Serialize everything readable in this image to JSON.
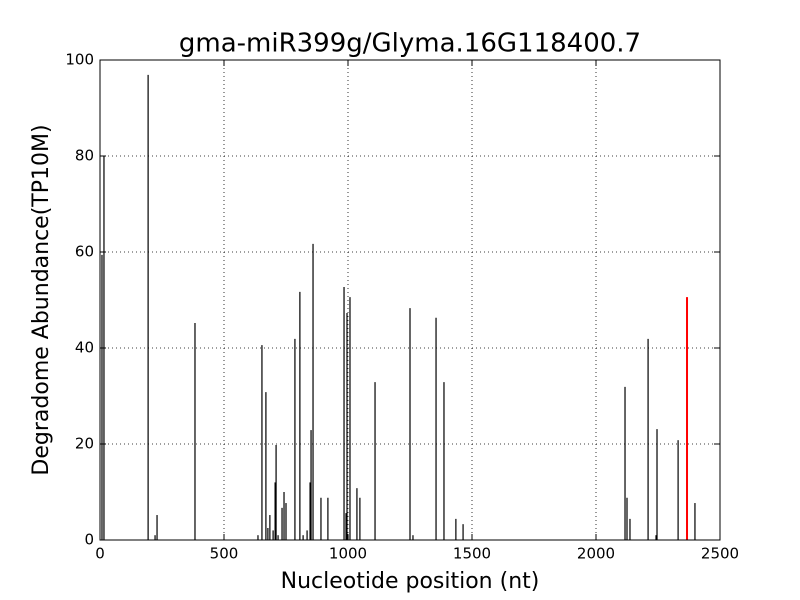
{
  "chart_data": {
    "type": "stem",
    "title": "gma-miR399g/Glyma.16G118400.7",
    "x_label": "Nucleotide position (nt)",
    "y_label": "Degradome Abundance(TP10M)",
    "xlim": [
      0,
      2500
    ],
    "xticks": [
      0,
      500,
      1000,
      1500,
      2000,
      2500
    ],
    "ylim": [
      0,
      100
    ],
    "yticks": [
      0,
      20,
      40,
      60,
      80,
      100
    ],
    "grid": true,
    "color": "#000000",
    "x": [
      8,
      16,
      194,
      222,
      230,
      383,
      637,
      653,
      669,
      677,
      685,
      698,
      706,
      710,
      718,
      734,
      742,
      750,
      786,
      806,
      819,
      835,
      847,
      851,
      859,
      891,
      919,
      984,
      992,
      996,
      1000,
      1008,
      1036,
      1048,
      1109,
      1250,
      1262,
      1355,
      1387,
      1435,
      1464,
      2117,
      2125,
      2137,
      2210,
      2242,
      2246,
      2331,
      2399
    ],
    "values": [
      59.4,
      80,
      96.9,
      1,
      5.2,
      45.2,
      1,
      40.6,
      30.8,
      2.5,
      5.2,
      2,
      12,
      19.8,
      1,
      6.7,
      10,
      7.7,
      41.9,
      51.7,
      1,
      2,
      12,
      22.9,
      61.7,
      8.8,
      8.8,
      52.7,
      5.6,
      47.3,
      1,
      50.6,
      10.8,
      8.8,
      32.9,
      48.3,
      1,
      46.3,
      32.9,
      4.4,
      3.3,
      31.9,
      8.8,
      4.4,
      41.9,
      1,
      23.1,
      20.8,
      7.7
    ],
    "target": {
      "x": 2367,
      "value": 50.6,
      "color": "#ff0000"
    }
  }
}
